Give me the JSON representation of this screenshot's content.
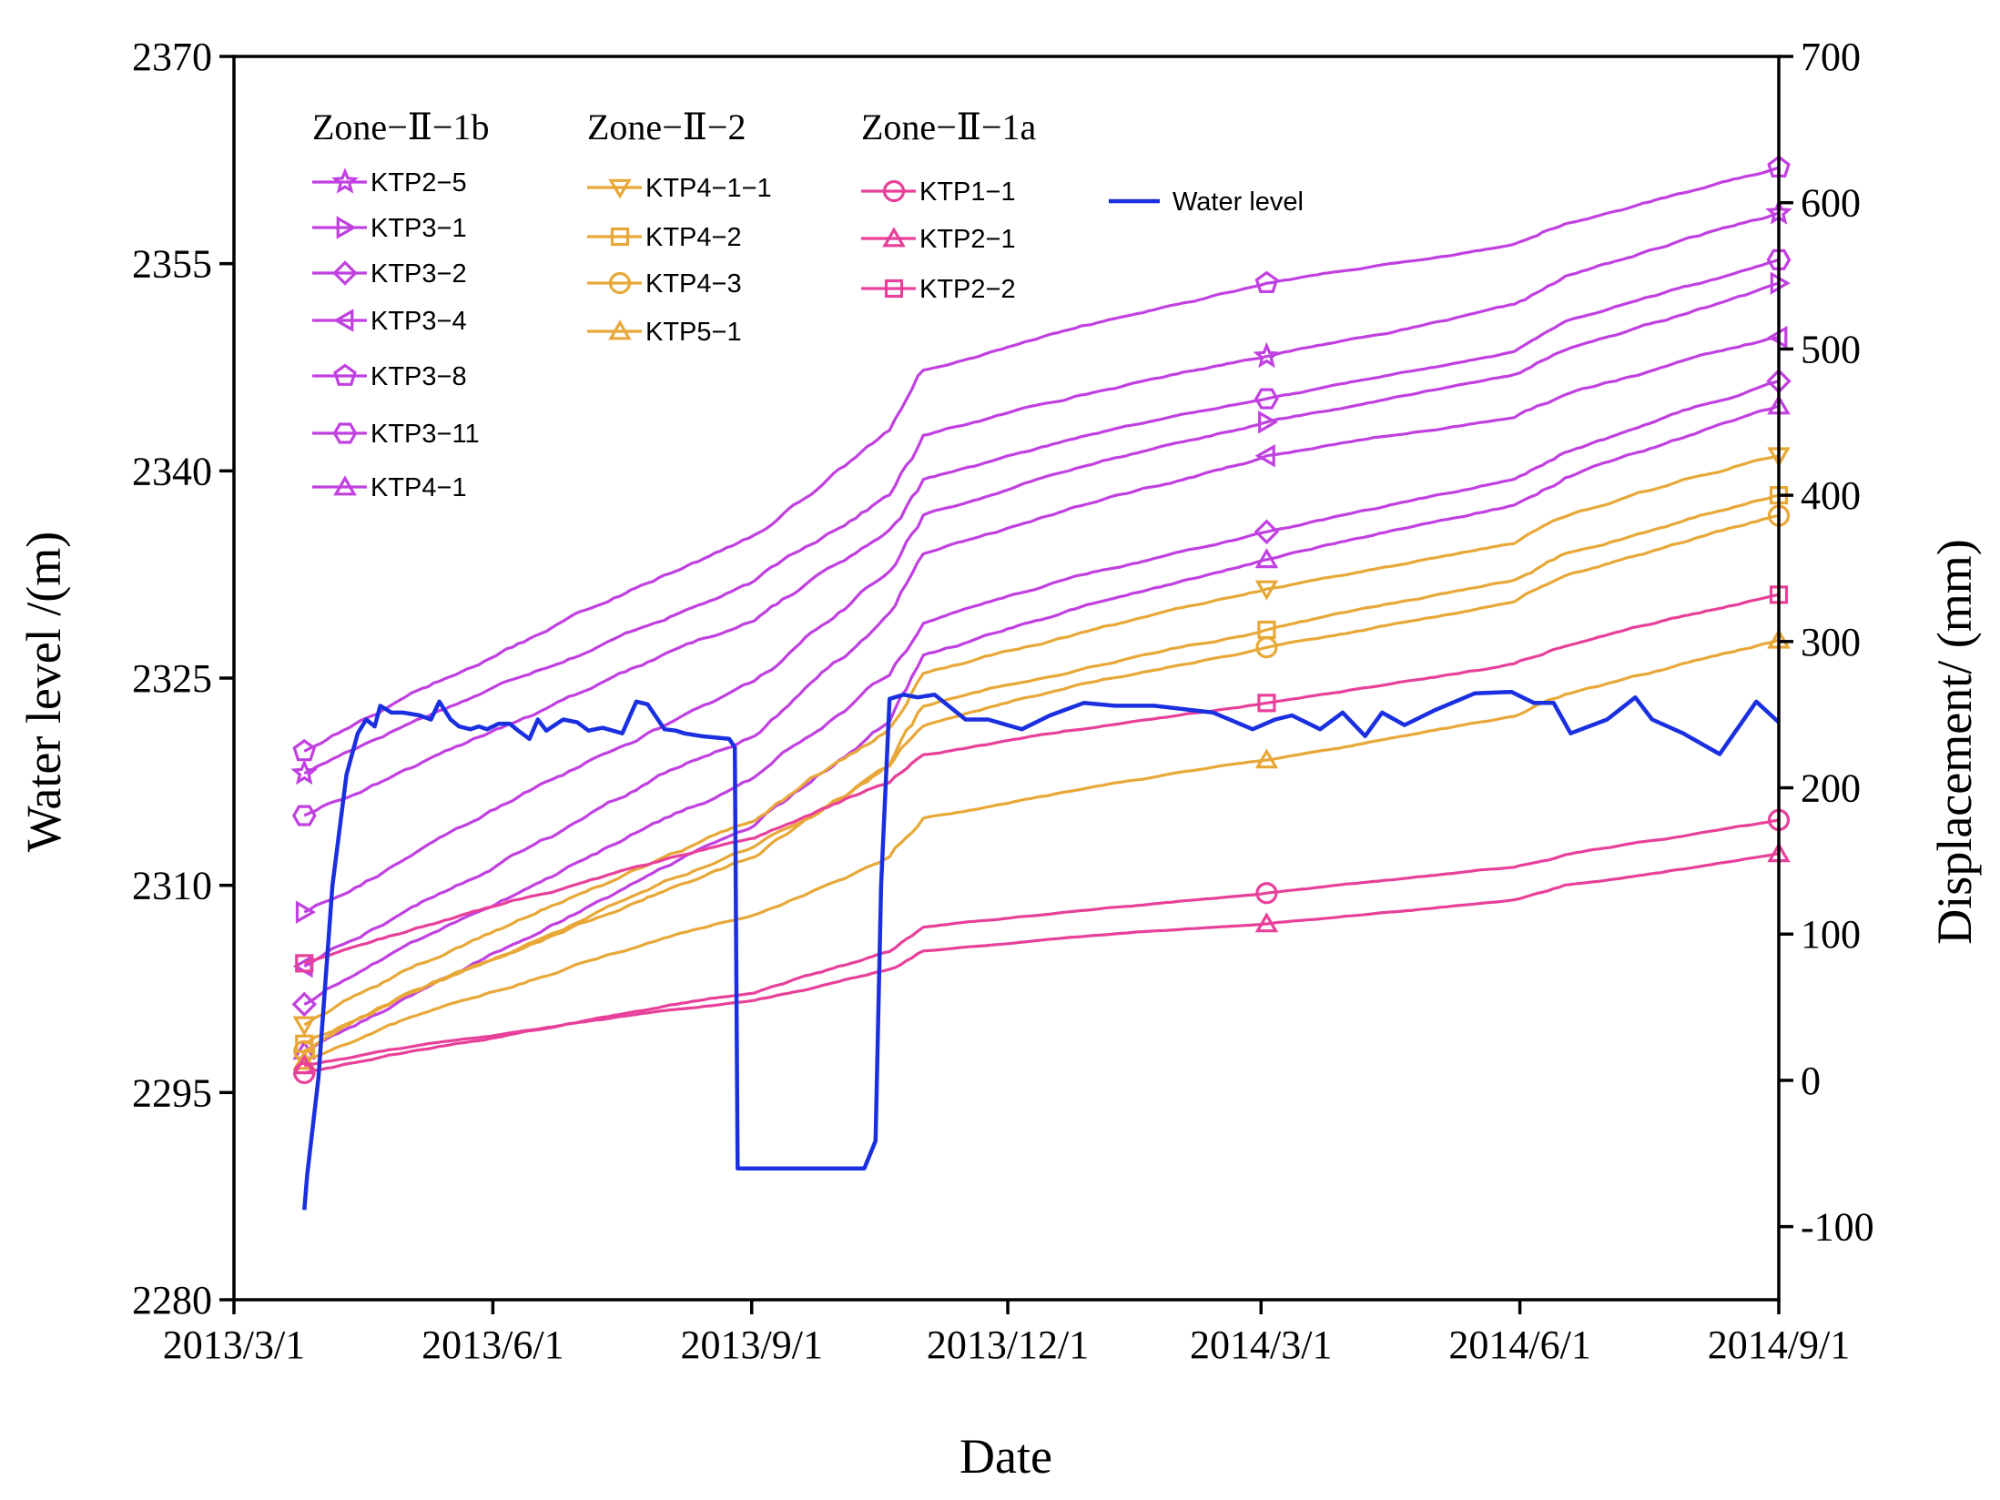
{
  "chart_data": {
    "type": "line",
    "xlabel": "Date",
    "ylabel_left": "Water level /(m)",
    "ylabel_right": "Displacement/ (mm)",
    "x_ticks": [
      "2013/3/1",
      "2013/6/1",
      "2013/9/1",
      "2013/12/1",
      "2014/3/1",
      "2014/6/1",
      "2014/9/1"
    ],
    "x_range_days": [
      0,
      549
    ],
    "x_tick_days": [
      0,
      92,
      184,
      275,
      365,
      457,
      549
    ],
    "y_left_range": [
      2280,
      2370
    ],
    "y_left_ticks": [
      2280,
      2295,
      2310,
      2325,
      2340,
      2355,
      2370
    ],
    "y_right_range": [
      -150,
      700
    ],
    "y_right_ticks": [
      -100,
      0,
      100,
      200,
      300,
      400,
      500,
      600,
      700
    ],
    "marker_days": [
      25,
      367,
      549
    ],
    "legend_groups": [
      {
        "title": "Zone−Ⅱ−1b",
        "series": [
          "KTP2−5",
          "KTP3−1",
          "KTP3−2",
          "KTP3−4",
          "KTP3−8",
          "KTP3−11",
          "KTP4−1"
        ]
      },
      {
        "title": "Zone−Ⅱ−2",
        "series": [
          "KTP4−1−1",
          "KTP4−2",
          "KTP4−3",
          "KTP5−1"
        ]
      },
      {
        "title": "Zone−Ⅱ−1a",
        "series": [
          "KTP1−1",
          "KTP2−1",
          "KTP2−2"
        ]
      },
      {
        "title": "",
        "series": [
          "Water level"
        ]
      }
    ],
    "series": [
      {
        "name": "KTP2−5",
        "group": "Zone−Ⅱ−1b",
        "axis": "right",
        "color": "#c040e0",
        "marker": "star",
        "days": [
          25,
          367,
          549
        ],
        "values": [
          210,
          495,
          593
        ]
      },
      {
        "name": "KTP3−1",
        "group": "Zone−Ⅱ−1b",
        "axis": "right",
        "color": "#c040e0",
        "marker": "triangle-right",
        "days": [
          25,
          367,
          549
        ],
        "values": [
          115,
          450,
          545
        ]
      },
      {
        "name": "KTP3−2",
        "group": "Zone−Ⅱ−1b",
        "axis": "right",
        "color": "#c040e0",
        "marker": "diamond",
        "days": [
          25,
          367,
          549
        ],
        "values": [
          52,
          375,
          478
        ]
      },
      {
        "name": "KTP3−4",
        "group": "Zone−Ⅱ−1b",
        "axis": "right",
        "color": "#c040e0",
        "marker": "triangle-left",
        "days": [
          25,
          367,
          549
        ],
        "values": [
          78,
          427,
          508
        ]
      },
      {
        "name": "KTP3−8",
        "group": "Zone−Ⅱ−1b",
        "axis": "right",
        "color": "#c040e0",
        "marker": "pentagon",
        "days": [
          25,
          367,
          549
        ],
        "values": [
          225,
          545,
          624
        ]
      },
      {
        "name": "KTP3−11",
        "group": "Zone−Ⅱ−1b",
        "axis": "right",
        "color": "#c040e0",
        "marker": "hexagon",
        "days": [
          25,
          367,
          549
        ],
        "values": [
          181,
          466,
          561
        ]
      },
      {
        "name": "KTP4−1",
        "group": "Zone−Ⅱ−1b",
        "axis": "right",
        "color": "#c040e0",
        "marker": "triangle-up",
        "days": [
          25,
          367,
          549
        ],
        "values": [
          20,
          356,
          461
        ]
      },
      {
        "name": "KTP4−1−1",
        "group": "Zone−Ⅱ−2",
        "axis": "right",
        "color": "#e8a838",
        "marker": "triangle-down",
        "days": [
          25,
          367,
          549
        ],
        "values": [
          38,
          336,
          427
        ]
      },
      {
        "name": "KTP4−2",
        "group": "Zone−Ⅱ−2",
        "axis": "right",
        "color": "#e8a838",
        "marker": "square",
        "days": [
          25,
          367,
          549
        ],
        "values": [
          25,
          308,
          400
        ]
      },
      {
        "name": "KTP4−3",
        "group": "Zone−Ⅱ−2",
        "axis": "right",
        "color": "#e8a838",
        "marker": "circle",
        "days": [
          25,
          367,
          549
        ],
        "values": [
          20,
          296,
          386
        ]
      },
      {
        "name": "KTP5−1",
        "group": "Zone−Ⅱ−2",
        "axis": "right",
        "color": "#e8a838",
        "marker": "triangle-up",
        "days": [
          25,
          367,
          549
        ],
        "values": [
          13,
          219,
          301
        ]
      },
      {
        "name": "KTP1−1",
        "group": "Zone−Ⅱ−1a",
        "axis": "right",
        "color": "#e8409a",
        "marker": "circle",
        "days": [
          25,
          367,
          549
        ],
        "values": [
          5,
          128,
          178
        ]
      },
      {
        "name": "KTP2−1",
        "group": "Zone−Ⅱ−1a",
        "axis": "right",
        "color": "#e8409a",
        "marker": "triangle-up",
        "days": [
          25,
          367,
          549
        ],
        "values": [
          10,
          107,
          155
        ]
      },
      {
        "name": "KTP2−2",
        "group": "Zone−Ⅱ−1a",
        "axis": "right",
        "color": "#e8409a",
        "marker": "square",
        "days": [
          25,
          367,
          549
        ],
        "values": [
          80,
          258,
          332
        ]
      }
    ],
    "water_level": {
      "name": "Water level",
      "axis": "left",
      "color": "#1a2fe0",
      "days": [
        25,
        26,
        30,
        35,
        40,
        44,
        47,
        50,
        52,
        56,
        60,
        66,
        70,
        73,
        77,
        80,
        84,
        87,
        90,
        94,
        98,
        101,
        105,
        108,
        111,
        117,
        122,
        126,
        131,
        138,
        143,
        147,
        153,
        157,
        160,
        166,
        176,
        178,
        179,
        224,
        228,
        230,
        233,
        238,
        243,
        249,
        260,
        268,
        280,
        290,
        302,
        313,
        327,
        348,
        362,
        370,
        376,
        386,
        394,
        402,
        408,
        416,
        427,
        441,
        454,
        462,
        469,
        475,
        488,
        498,
        504,
        515,
        528,
        541,
        549
      ],
      "values": [
        2286.5,
        2289,
        2296,
        2310,
        2318,
        2321,
        2322,
        2321.5,
        2323,
        2322.5,
        2322.5,
        2322.3,
        2322,
        2323.3,
        2322,
        2321.5,
        2321.3,
        2321.5,
        2321.3,
        2321.7,
        2321.7,
        2321.2,
        2320.6,
        2322,
        2321.2,
        2322,
        2321.8,
        2321.2,
        2321.4,
        2321,
        2323.3,
        2323.1,
        2321.3,
        2321.2,
        2321,
        2320.8,
        2320.6,
        2320,
        2289.5,
        2289.5,
        2291.5,
        2310,
        2323.5,
        2323.8,
        2323.6,
        2323.8,
        2322,
        2322,
        2321.3,
        2322.3,
        2323.2,
        2323,
        2323,
        2322.5,
        2321.3,
        2322,
        2322.3,
        2321.3,
        2322.5,
        2320.8,
        2322.5,
        2321.6,
        2322.7,
        2323.9,
        2324,
        2323.2,
        2323.2,
        2321,
        2322,
        2323.6,
        2322,
        2321,
        2319.5,
        2323.3,
        2321.8
      ]
    }
  }
}
